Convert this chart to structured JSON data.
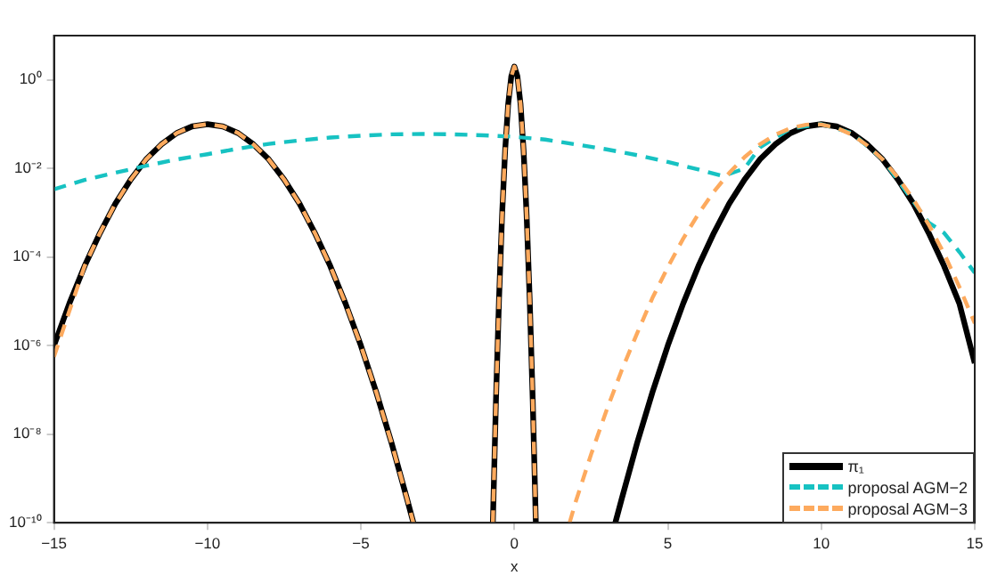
{
  "chart_data": {
    "type": "line",
    "xlabel": "x",
    "log": "y",
    "grid": false,
    "legend": "bottom right",
    "marker": "none",
    "xlim": [
      -15,
      15
    ],
    "xticks": [
      -15,
      -10,
      -5,
      0,
      5,
      10,
      15
    ],
    "ylim": [
      1e-10,
      10
    ],
    "yticks": [
      {
        "value": 1e-10,
        "label": "10⁻¹⁰"
      },
      {
        "value": 1e-08,
        "label": "10⁻⁸"
      },
      {
        "value": 1e-06,
        "label": "10⁻⁶"
      },
      {
        "value": 0.0001,
        "label": "10⁻⁴"
      },
      {
        "value": 0.01,
        "label": "10⁻²"
      },
      {
        "value": 1,
        "label": "10⁰"
      }
    ],
    "series": [
      {
        "name": "π₁",
        "color": "#000000",
        "line_style": "solid",
        "x": [
          -15,
          -14.5,
          -14,
          -13.5,
          -13,
          -12.5,
          -12,
          -11.5,
          -11,
          -10.5,
          -10,
          -9.5,
          -9,
          -8.5,
          -8,
          -7.5,
          -7,
          -6.5,
          -6,
          -5.5,
          -5,
          -4.5,
          -4,
          -3.5,
          -3.29,
          -3,
          -0.7,
          -0.6,
          -0.5,
          -0.4,
          -0.3,
          -0.2,
          -0.1,
          0,
          0.1,
          0.2,
          0.3,
          0.4,
          0.5,
          0.6,
          0.7,
          1,
          3.29,
          3.5,
          4,
          4.5,
          5,
          5.5,
          6,
          6.5,
          7,
          7.5,
          8,
          8.5,
          9,
          9.5,
          10,
          10.5,
          11,
          11.5,
          12,
          12.5,
          13,
          13.5,
          14,
          14.5,
          15
        ],
        "values": [
          1e-06,
          8.9e-06,
          6.3e-05,
          0.00035,
          0.0016,
          0.0056,
          0.016,
          0.035,
          0.063,
          0.089,
          0.1,
          0.089,
          0.063,
          0.035,
          0.016,
          0.0056,
          0.0016,
          0.00035,
          6.3e-05,
          8.9e-06,
          1e-06,
          8.9e-08,
          6.3e-09,
          3.5e-10,
          1e-10,
          null,
          1e-10,
          5.5e-08,
          1.1e-05,
          0.00087,
          0.026,
          0.29,
          1.2,
          2,
          1.2,
          0.29,
          0.026,
          0.00087,
          1.1e-05,
          5.5e-08,
          1e-10,
          null,
          1e-10,
          3.5e-10,
          6.3e-09,
          8.9e-08,
          1e-06,
          8.9e-06,
          6.3e-05,
          0.00035,
          0.0016,
          0.0056,
          0.016,
          0.035,
          0.063,
          0.089,
          0.1,
          0.089,
          0.063,
          0.035,
          0.016,
          0.0056,
          0.0016,
          0.00035,
          6.3e-05,
          8.9e-06,
          4e-07
        ]
      },
      {
        "name": "proposal AGM−2",
        "color": "#17c2c2",
        "line_style": "dashed",
        "x": [
          -15,
          -14,
          -13,
          -12,
          -11,
          -10,
          -9,
          -8,
          -7,
          -6,
          -5,
          -4,
          -3,
          -2,
          -1,
          0,
          1,
          2,
          3,
          4,
          5,
          6,
          6.8,
          7.5,
          8,
          9,
          10,
          11,
          12,
          13,
          13.5,
          14,
          14.5,
          15
        ],
        "values": [
          0.0034,
          0.0055,
          0.008,
          0.0115,
          0.016,
          0.021,
          0.028,
          0.036,
          0.043,
          0.05,
          0.055,
          0.059,
          0.06,
          0.059,
          0.056,
          0.052,
          0.045,
          0.035,
          0.027,
          0.02,
          0.014,
          0.0095,
          0.0067,
          0.01,
          0.03,
          0.08,
          0.1,
          0.063,
          0.016,
          0.0018,
          0.0006,
          0.00035,
          0.00013,
          4.4e-05
        ]
      },
      {
        "name": "proposal AGM−3",
        "color": "#fdaa5e",
        "line_style": "dashed",
        "x": [
          -15,
          -14.5,
          -14,
          -13.5,
          -13,
          -12.5,
          -12,
          -11.5,
          -11,
          -10.5,
          -10,
          -9.5,
          -9,
          -8.5,
          -8,
          -7.5,
          -7,
          -6.5,
          -6,
          -5.5,
          -5,
          -4.5,
          -4,
          -3.5,
          -3.29,
          -3,
          -0.7,
          -0.6,
          -0.5,
          -0.4,
          -0.3,
          -0.2,
          -0.1,
          0,
          0.1,
          0.2,
          0.3,
          0.4,
          0.5,
          0.6,
          0.7,
          1,
          1.8,
          2,
          2.5,
          3,
          3.5,
          4,
          4.5,
          5,
          5.5,
          6,
          6.5,
          7,
          7.5,
          8,
          8.5,
          9,
          9.5,
          9.8,
          10,
          10.5,
          11,
          11.5,
          12,
          12.5,
          13,
          13.5,
          14,
          14.5,
          15
        ],
        "values": [
          5.6e-07,
          6e-06,
          6.3e-05,
          0.00035,
          0.0016,
          0.0056,
          0.016,
          0.035,
          0.063,
          0.089,
          0.1,
          0.089,
          0.063,
          0.035,
          0.016,
          0.0056,
          0.0016,
          0.00035,
          6.3e-05,
          8.9e-06,
          1e-06,
          8.9e-08,
          6.3e-09,
          3.5e-10,
          1e-10,
          null,
          1e-10,
          5.5e-08,
          1.1e-05,
          0.00087,
          0.026,
          0.29,
          1.2,
          2,
          1.2,
          0.29,
          0.026,
          0.00087,
          1.1e-05,
          5.5e-08,
          1e-10,
          null,
          1e-10,
          3e-10,
          3.5e-09,
          3.4e-08,
          2.8e-07,
          1.9e-06,
          1.2e-05,
          5.9e-05,
          0.00026,
          0.00095,
          0.003,
          0.0079,
          0.018,
          0.035,
          0.058,
          0.081,
          0.097,
          0.1,
          0.098,
          0.083,
          0.058,
          0.033,
          0.016,
          0.0062,
          0.002,
          0.00054,
          0.00012,
          2.1e-05,
          3.2e-06
        ]
      }
    ]
  }
}
